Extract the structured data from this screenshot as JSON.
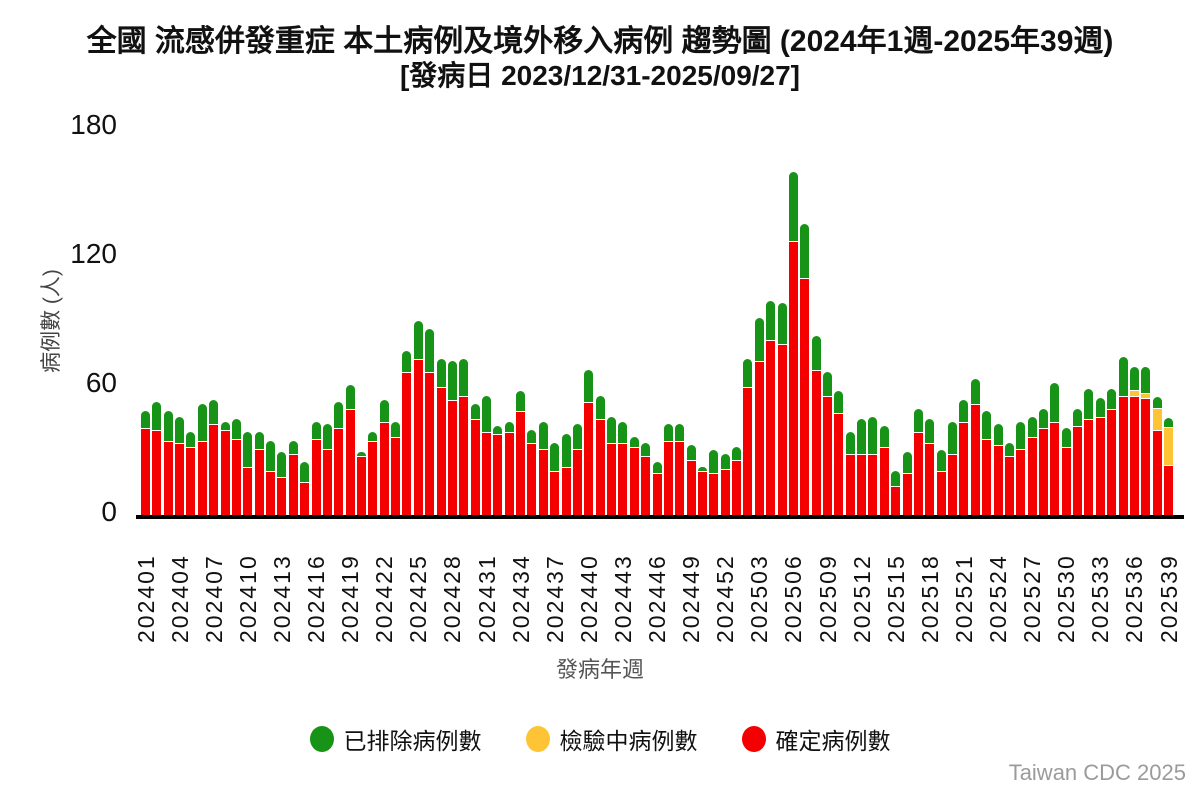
{
  "title": "全國 流感併發重症 本土病例及境外移入病例 趨勢圖 (2024年1週-2025年39週)",
  "subtitle": "[發病日 2023/12/31-2025/09/27]",
  "footer": "Taiwan CDC 2025",
  "chart_data": {
    "type": "bar",
    "stacked": true,
    "title": "全國 流感併發重症 本土病例及境外移入病例 趨勢圖 (2024年1週-2025年39週)",
    "subtitle": "[發病日 2023/12/31-2025/09/27]",
    "xlabel": "發病年週",
    "ylabel": "病例數 (人)",
    "ylim": [
      0,
      180
    ],
    "yticks": [
      0,
      60,
      120,
      180
    ],
    "grid": false,
    "legend_position": "bottom",
    "x_tick_every": 3,
    "categories": [
      "202401",
      "202402",
      "202403",
      "202404",
      "202405",
      "202406",
      "202407",
      "202408",
      "202409",
      "202410",
      "202411",
      "202412",
      "202413",
      "202414",
      "202415",
      "202416",
      "202417",
      "202418",
      "202419",
      "202420",
      "202421",
      "202422",
      "202423",
      "202424",
      "202425",
      "202426",
      "202427",
      "202428",
      "202429",
      "202430",
      "202431",
      "202432",
      "202433",
      "202434",
      "202435",
      "202436",
      "202437",
      "202438",
      "202439",
      "202440",
      "202441",
      "202442",
      "202443",
      "202444",
      "202445",
      "202446",
      "202447",
      "202448",
      "202449",
      "202450",
      "202451",
      "202452",
      "202501",
      "202502",
      "202503",
      "202504",
      "202505",
      "202506",
      "202507",
      "202508",
      "202509",
      "202510",
      "202511",
      "202512",
      "202513",
      "202514",
      "202515",
      "202516",
      "202517",
      "202518",
      "202519",
      "202520",
      "202521",
      "202522",
      "202523",
      "202524",
      "202525",
      "202526",
      "202527",
      "202528",
      "202529",
      "202530",
      "202531",
      "202532",
      "202533",
      "202534",
      "202535",
      "202536",
      "202537",
      "202538",
      "202539"
    ],
    "series": [
      {
        "name": "確定病例數",
        "color": "#f50000",
        "values": [
          40,
          39,
          34,
          33,
          31,
          34,
          42,
          39,
          35,
          22,
          30,
          20,
          17,
          28,
          15,
          35,
          30,
          40,
          49,
          27,
          34,
          43,
          36,
          66,
          72,
          66,
          59,
          53,
          55,
          44,
          38,
          37,
          38,
          48,
          33,
          30,
          20,
          22,
          30,
          52,
          44,
          33,
          33,
          31,
          27,
          19,
          34,
          34,
          25,
          20,
          19,
          21,
          25,
          59,
          71,
          81,
          79,
          127,
          110,
          67,
          55,
          47,
          28,
          28,
          28,
          31,
          13,
          19,
          38,
          33,
          20,
          28,
          43,
          51,
          35,
          32,
          27,
          30,
          36,
          40,
          43,
          31,
          41,
          44,
          45,
          49,
          55,
          55,
          54,
          39,
          23
        ]
      },
      {
        "name": "檢驗中病例數",
        "color": "#ffc435",
        "values": [
          0,
          0,
          0,
          0,
          0,
          0,
          0,
          0,
          0,
          0,
          0,
          0,
          0,
          0,
          0,
          0,
          0,
          0,
          0,
          0,
          0,
          0,
          0,
          0,
          0,
          0,
          0,
          0,
          0,
          0,
          0,
          0,
          0,
          0,
          0,
          0,
          0,
          0,
          0,
          0,
          0,
          0,
          0,
          0,
          0,
          0,
          0,
          0,
          0,
          0,
          0,
          0,
          0,
          0,
          0,
          0,
          0,
          0,
          0,
          0,
          0,
          0,
          0,
          0,
          0,
          0,
          0,
          0,
          0,
          0,
          0,
          0,
          0,
          0,
          0,
          0,
          0,
          0,
          0,
          0,
          0,
          0,
          0,
          0,
          0,
          0,
          0,
          2,
          2,
          10,
          17
        ]
      },
      {
        "name": "已排除病例數",
        "color": "#179417",
        "values": [
          8,
          13,
          14,
          12,
          7,
          17,
          11,
          4,
          9,
          16,
          8,
          14,
          12,
          6,
          9,
          8,
          12,
          12,
          11,
          2,
          4,
          10,
          7,
          10,
          18,
          20,
          13,
          18,
          17,
          7,
          17,
          4,
          5,
          9,
          6,
          13,
          13,
          15,
          12,
          15,
          11,
          12,
          10,
          5,
          6,
          5,
          8,
          8,
          7,
          2,
          11,
          7,
          6,
          13,
          20,
          18,
          19,
          32,
          25,
          16,
          11,
          10,
          10,
          16,
          17,
          10,
          7,
          10,
          11,
          11,
          10,
          15,
          10,
          12,
          13,
          10,
          6,
          13,
          9,
          9,
          18,
          9,
          8,
          14,
          9,
          9,
          18,
          11,
          12,
          5,
          4
        ]
      }
    ],
    "legend_items": [
      {
        "label": "已排除病例數",
        "color": "#179417"
      },
      {
        "label": "檢驗中病例數",
        "color": "#ffc435"
      },
      {
        "label": "確定病例數",
        "color": "#f50000"
      }
    ]
  }
}
